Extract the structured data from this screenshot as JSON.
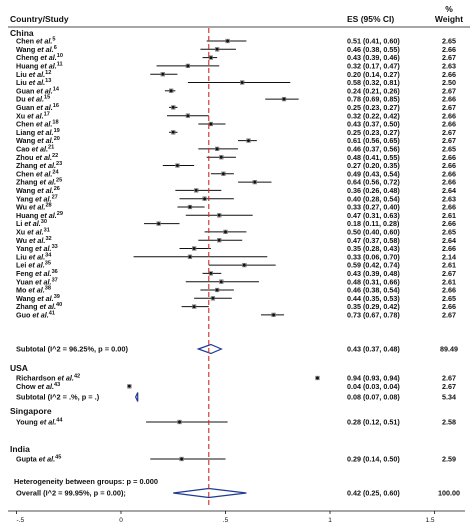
{
  "chart_data": {
    "type": "forest",
    "headers": {
      "study": "Country/Study",
      "es": "ES (95% CI)",
      "weight_top": "%",
      "weight_bottom": "Weight"
    },
    "x_ticks": [
      "-.5",
      "0",
      ".5",
      "1",
      "1.5"
    ],
    "x_tick_values": [
      -0.5,
      0,
      0.5,
      1,
      1.5
    ],
    "xlim": [
      -0.5,
      1.5
    ],
    "reference_line": 0.42,
    "groups": [
      {
        "name": "China",
        "studies": [
          {
            "author": "Chen et al.",
            "ref": "5",
            "es": 0.51,
            "lo": 0.41,
            "hi": 0.6,
            "ci": "0.51 (0.41, 0.60)",
            "weight": "2.65"
          },
          {
            "author": "Wang et al.",
            "ref": "6",
            "es": 0.46,
            "lo": 0.38,
            "hi": 0.55,
            "ci": "0.46 (0.38, 0.55)",
            "weight": "2.66"
          },
          {
            "author": "Cheng et al.",
            "ref": "10",
            "es": 0.43,
            "lo": 0.39,
            "hi": 0.46,
            "ci": "0.43 (0.39, 0.46)",
            "weight": "2.67"
          },
          {
            "author": "Huang et al.",
            "ref": "11",
            "es": 0.32,
            "lo": 0.17,
            "hi": 0.47,
            "ci": "0.32 (0.17, 0.47)",
            "weight": "2.63"
          },
          {
            "author": "Liu et al.",
            "ref": "12",
            "es": 0.2,
            "lo": 0.14,
            "hi": 0.27,
            "ci": "0.20 (0.14, 0.27)",
            "weight": "2.66"
          },
          {
            "author": "Liu et al.",
            "ref": "13",
            "es": 0.58,
            "lo": 0.32,
            "hi": 0.81,
            "ci": "0.58 (0.32, 0.81)",
            "weight": "2.50"
          },
          {
            "author": "Guan et al.",
            "ref": "14",
            "es": 0.24,
            "lo": 0.21,
            "hi": 0.26,
            "ci": "0.24 (0.21, 0.26)",
            "weight": "2.67"
          },
          {
            "author": "Du et al.",
            "ref": "15",
            "es": 0.78,
            "lo": 0.69,
            "hi": 0.85,
            "ci": "0.78 (0.69, 0.85)",
            "weight": "2.66"
          },
          {
            "author": "Guan et al.",
            "ref": "16",
            "es": 0.25,
            "lo": 0.23,
            "hi": 0.27,
            "ci": "0.25 (0.23, 0.27)",
            "weight": "2.67"
          },
          {
            "author": "Xu et al.",
            "ref": "17",
            "es": 0.32,
            "lo": 0.22,
            "hi": 0.42,
            "ci": "0.32 (0.22, 0.42)",
            "weight": "2.66"
          },
          {
            "author": "Chen et al.",
            "ref": "18",
            "es": 0.43,
            "lo": 0.37,
            "hi": 0.5,
            "ci": "0.43 (0.37, 0.50)",
            "weight": "2.66"
          },
          {
            "author": "Liang et al.",
            "ref": "19",
            "es": 0.25,
            "lo": 0.23,
            "hi": 0.27,
            "ci": "0.25 (0.23, 0.27)",
            "weight": "2.67"
          },
          {
            "author": "Wang et al.",
            "ref": "20",
            "es": 0.61,
            "lo": 0.56,
            "hi": 0.65,
            "ci": "0.61 (0.56, 0.65)",
            "weight": "2.67"
          },
          {
            "author": "Cao et al.",
            "ref": "21",
            "es": 0.46,
            "lo": 0.37,
            "hi": 0.56,
            "ci": "0.46 (0.37, 0.56)",
            "weight": "2.65"
          },
          {
            "author": "Zhou et al.",
            "ref": "22",
            "es": 0.48,
            "lo": 0.41,
            "hi": 0.55,
            "ci": "0.48 (0.41, 0.55)",
            "weight": "2.66"
          },
          {
            "author": "Zhang et al.",
            "ref": "23",
            "es": 0.27,
            "lo": 0.2,
            "hi": 0.35,
            "ci": "0.27 (0.20, 0.35)",
            "weight": "2.66"
          },
          {
            "author": "Chen et al.",
            "ref": "24",
            "es": 0.49,
            "lo": 0.43,
            "hi": 0.54,
            "ci": "0.49 (0.43, 0.54)",
            "weight": "2.66"
          },
          {
            "author": "Zhang et al.",
            "ref": "25",
            "es": 0.64,
            "lo": 0.56,
            "hi": 0.72,
            "ci": "0.64 (0.56, 0.72)",
            "weight": "2.66"
          },
          {
            "author": "Wang et al.",
            "ref": "26",
            "es": 0.36,
            "lo": 0.26,
            "hi": 0.48,
            "ci": "0.36 (0.26, 0.48)",
            "weight": "2.64"
          },
          {
            "author": "Yang et al.",
            "ref": "27",
            "es": 0.4,
            "lo": 0.28,
            "hi": 0.54,
            "ci": "0.40 (0.28, 0.54)",
            "weight": "2.63"
          },
          {
            "author": "Wu et al.",
            "ref": "28",
            "es": 0.33,
            "lo": 0.27,
            "hi": 0.4,
            "ci": "0.33 (0.27, 0.40)",
            "weight": "2.66"
          },
          {
            "author": "Huang et al.",
            "ref": "29",
            "es": 0.47,
            "lo": 0.31,
            "hi": 0.63,
            "ci": "0.47 (0.31, 0.63)",
            "weight": "2.61"
          },
          {
            "author": "Li et al.",
            "ref": "30",
            "es": 0.18,
            "lo": 0.11,
            "hi": 0.28,
            "ci": "0.18 (0.11, 0.28)",
            "weight": "2.66"
          },
          {
            "author": "Xu et al.",
            "ref": "31",
            "es": 0.5,
            "lo": 0.4,
            "hi": 0.6,
            "ci": "0.50 (0.40, 0.60)",
            "weight": "2.65"
          },
          {
            "author": "Wu et al.",
            "ref": "32",
            "es": 0.47,
            "lo": 0.37,
            "hi": 0.58,
            "ci": "0.47 (0.37, 0.58)",
            "weight": "2.64"
          },
          {
            "author": "Yang et al.",
            "ref": "33",
            "es": 0.35,
            "lo": 0.28,
            "hi": 0.43,
            "ci": "0.35 (0.28, 0.43)",
            "weight": "2.66"
          },
          {
            "author": "Liu et al.",
            "ref": "34",
            "es": 0.33,
            "lo": 0.06,
            "hi": 0.7,
            "ci": "0.33 (0.06, 0.70)",
            "weight": "2.14"
          },
          {
            "author": "Lei et al.",
            "ref": "35",
            "es": 0.59,
            "lo": 0.42,
            "hi": 0.74,
            "ci": "0.59 (0.42, 0.74)",
            "weight": "2.61"
          },
          {
            "author": "Feng et al.",
            "ref": "36",
            "es": 0.43,
            "lo": 0.39,
            "hi": 0.48,
            "ci": "0.43 (0.39, 0.48)",
            "weight": "2.67"
          },
          {
            "author": "Yuan et al.",
            "ref": "37",
            "es": 0.48,
            "lo": 0.31,
            "hi": 0.66,
            "ci": "0.48 (0.31, 0.66)",
            "weight": "2.61"
          },
          {
            "author": "Mo et al.",
            "ref": "38",
            "es": 0.46,
            "lo": 0.38,
            "hi": 0.54,
            "ci": "0.46 (0.38, 0.54)",
            "weight": "2.66"
          },
          {
            "author": "Wang et al.",
            "ref": "39",
            "es": 0.44,
            "lo": 0.35,
            "hi": 0.53,
            "ci": "0.44 (0.35, 0.53)",
            "weight": "2.65"
          },
          {
            "author": "Zhang et al.",
            "ref": "40",
            "es": 0.35,
            "lo": 0.29,
            "hi": 0.42,
            "ci": "0.35 (0.29, 0.42)",
            "weight": "2.66"
          },
          {
            "author": "Guo et al.",
            "ref": "41",
            "es": 0.73,
            "lo": 0.67,
            "hi": 0.78,
            "ci": "0.73 (0.67, 0.78)",
            "weight": "2.67"
          }
        ],
        "subtotal": {
          "label": "Subtotal  (I^2 = 96.25%, p = 0.00)",
          "es": 0.43,
          "lo": 0.37,
          "hi": 0.48,
          "ci": "0.43 (0.37, 0.48)",
          "weight": "89.49"
        }
      },
      {
        "name": "USA",
        "studies": [
          {
            "author": "Richardson et al.",
            "ref": "42",
            "es": 0.94,
            "lo": 0.93,
            "hi": 0.94,
            "ci": "0.94 (0.93, 0.94)",
            "weight": "2.67"
          },
          {
            "author": "Chow et al.",
            "ref": "43",
            "es": 0.04,
            "lo": 0.03,
            "hi": 0.04,
            "ci": "0.04 (0.03, 0.04)",
            "weight": "2.67"
          }
        ],
        "subtotal": {
          "label": "Subtotal  (I^2 = .%, p = .)",
          "es": 0.08,
          "lo": 0.07,
          "hi": 0.08,
          "ci": "0.08 (0.07, 0.08)",
          "weight": "5.34"
        }
      },
      {
        "name": "Singapore",
        "studies": [
          {
            "author": "Young et al.",
            "ref": "44",
            "es": 0.28,
            "lo": 0.12,
            "hi": 0.51,
            "ci": "0.28 (0.12, 0.51)",
            "weight": "2.58"
          }
        ]
      },
      {
        "name": "India",
        "studies": [
          {
            "author": "Gupta et al.",
            "ref": "45",
            "es": 0.29,
            "lo": 0.14,
            "hi": 0.5,
            "ci": "0.29 (0.14, 0.50)",
            "weight": "2.59"
          }
        ]
      }
    ],
    "heterogeneity": "Heterogeneity between groups: p = 0.000",
    "overall": {
      "label": "Overall  (I^2 = 99.95%, p = 0.00);",
      "es": 0.42,
      "lo": 0.25,
      "hi": 0.6,
      "ci": "0.42 (0.25, 0.60)",
      "weight": "100.00"
    },
    "colors": {
      "reference_line": "#d62728",
      "diamond": "#1f3a93",
      "text": "#111111"
    }
  }
}
